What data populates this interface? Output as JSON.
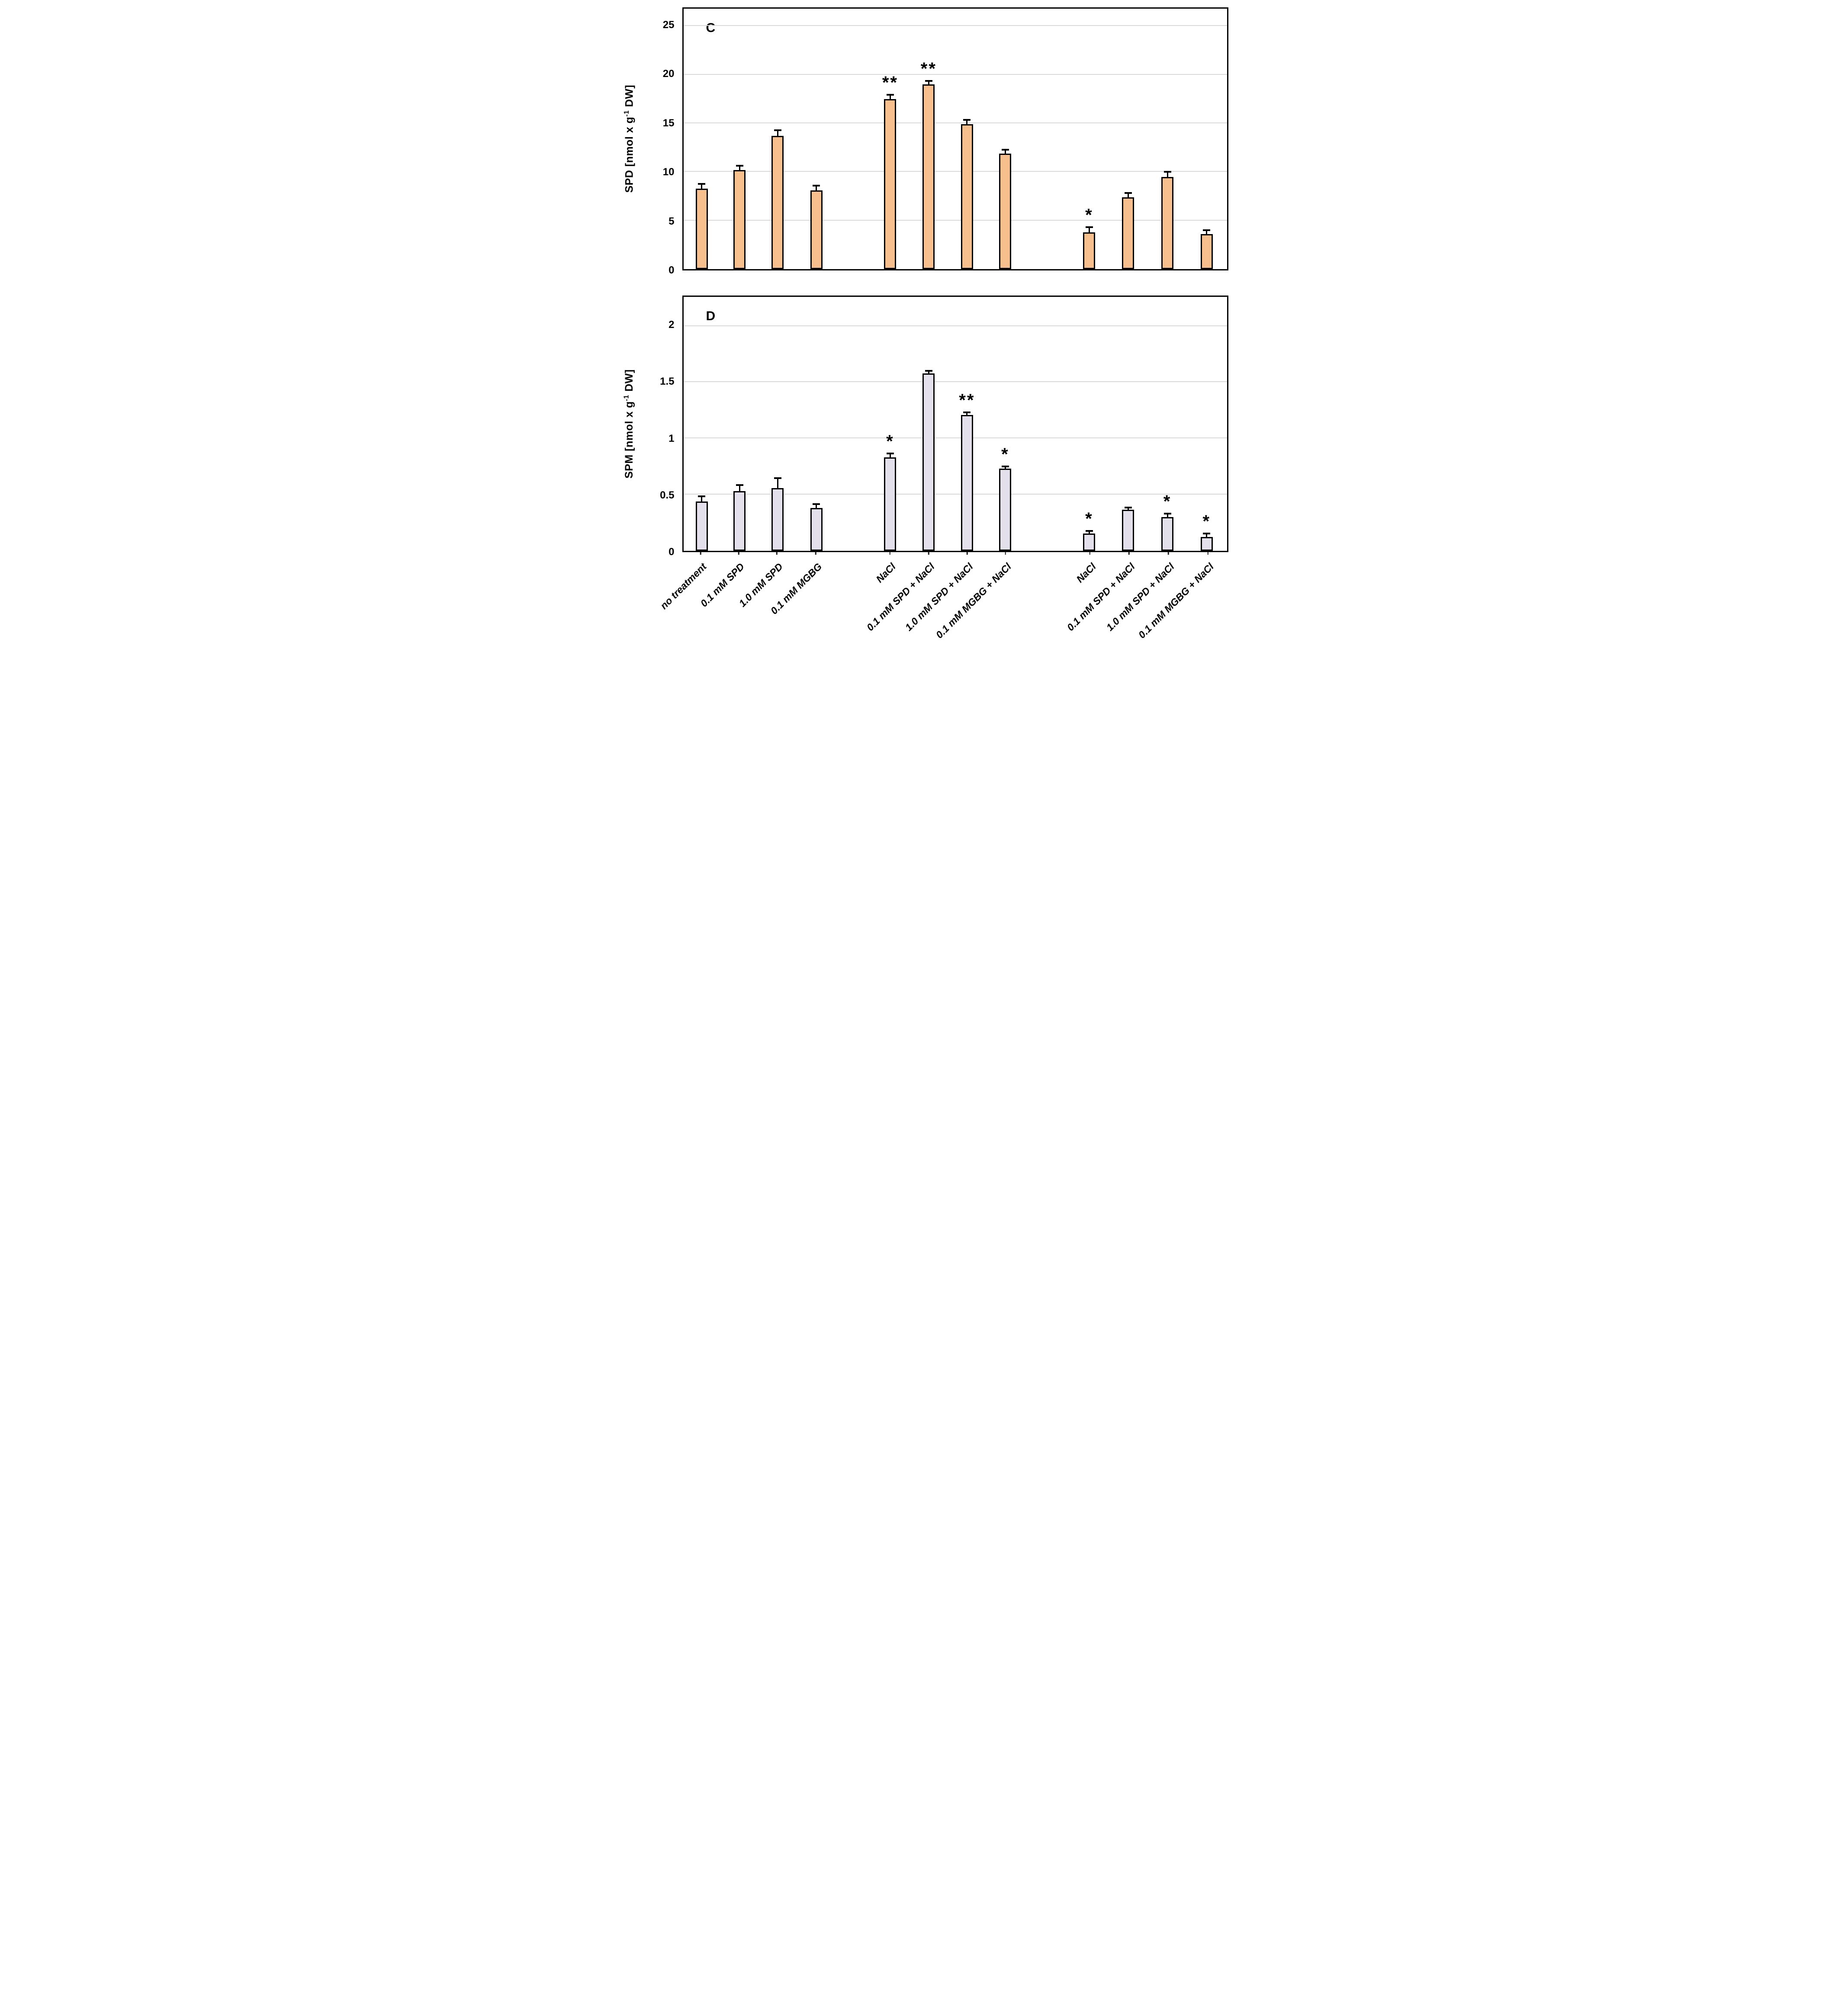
{
  "page": {
    "background": "#FFFFFF",
    "description": "Two-panel bar chart figure, panels C and D"
  },
  "chart_data": [
    {
      "type": "bar",
      "panel_label": "C",
      "ylabel": "SPD [nmol x g-1 DW]",
      "ylabel_parts": {
        "pre": "SPD [nmol x g",
        "sup": "-1",
        "post": " DW]"
      },
      "ylim": [
        0,
        26.8
      ],
      "yticks": [
        0,
        5,
        10,
        15,
        20,
        25
      ],
      "ytick_labels": [
        "0",
        "5",
        "10",
        "15",
        "20",
        "25"
      ],
      "grid": "horizontal-solid-light-gray",
      "bar_fill": "#F7BF8E",
      "bar_border": "#000000",
      "categories": [
        "no treatment",
        "0.1 mM SPD",
        "1.0 mM SPD",
        "0.1 mM MGBG",
        "NaCl",
        "0.1 mM SPD + NaCl",
        "1.0 mM SPD + NaCl",
        "0.1 mM MGBG + NaCl",
        "NaCl",
        "0.1 mM SPD + NaCl",
        "1.0 mM SPD + NaCl",
        "0.1 mM MGBG + NaCl"
      ],
      "values": [
        8.3,
        10.2,
        13.7,
        8.1,
        17.5,
        19.0,
        14.9,
        11.9,
        3.8,
        7.4,
        9.5,
        3.6
      ],
      "errors": [
        0.5,
        0.5,
        0.65,
        0.55,
        0.5,
        0.4,
        0.5,
        0.45,
        0.55,
        0.5,
        0.55,
        0.45
      ],
      "significance": [
        "",
        "",
        "",
        "",
        "**",
        "**",
        "",
        "",
        "*",
        "",
        "",
        ""
      ]
    },
    {
      "type": "bar",
      "panel_label": "D",
      "ylabel": "SPM [nmol x g-1 DW]",
      "ylabel_parts": {
        "pre": "SPM [nmol x g",
        "sup": "-1",
        "post": " DW]"
      },
      "ylim": [
        0,
        2.26
      ],
      "yticks": [
        0,
        0.5,
        1,
        1.5,
        2
      ],
      "ytick_labels": [
        "0",
        "0.5",
        "1",
        "1.5",
        "2"
      ],
      "grid": "horizontal-solid-light-gray",
      "bar_fill": "#E4E0EB",
      "bar_border": "#000000",
      "categories": [
        "no treatment",
        "0.1 mM SPD",
        "1.0 mM SPD",
        "0.1 mM MGBG",
        "NaCl",
        "0.1 mM SPD + NaCl",
        "1.0 mM SPD + NaCl",
        "0.1 mM MGBG + NaCl",
        "NaCl",
        "0.1 mM SPD + NaCl",
        "1.0 mM SPD + NaCl",
        "0.1 mM MGBG + NaCl"
      ],
      "values": [
        0.44,
        0.53,
        0.56,
        0.38,
        0.83,
        1.58,
        1.21,
        0.73,
        0.155,
        0.365,
        0.3,
        0.125
      ],
      "errors": [
        0.05,
        0.06,
        0.09,
        0.04,
        0.04,
        0.025,
        0.025,
        0.025,
        0.027,
        0.025,
        0.034,
        0.032
      ],
      "significance": [
        "",
        "",
        "",
        "",
        "*",
        "",
        "**",
        "*",
        "*",
        "",
        "*",
        "*"
      ]
    }
  ],
  "x_axis": {
    "shared": true,
    "rotation_deg": -45,
    "categories": [
      "no treatment",
      "0.1 mM SPD",
      "1.0 mM SPD",
      "0.1 mM MGBG",
      "NaCl",
      "0.1 mM SPD + NaCl",
      "1.0 mM SPD + NaCl",
      "0.1 mM MGBG + NaCl",
      "NaCl",
      "0.1 mM SPD + NaCl",
      "1.0 mM SPD + NaCl",
      "0.1 mM MGBG + NaCl"
    ],
    "bar_centers_pct": [
      3.38,
      10.35,
      17.35,
      24.48,
      38.05,
      45.13,
      52.18,
      59.23,
      74.68,
      81.83,
      89.06,
      96.28
    ]
  }
}
